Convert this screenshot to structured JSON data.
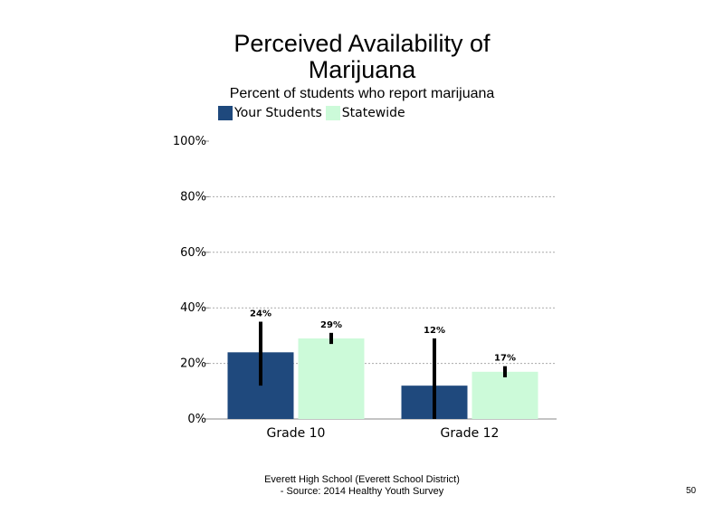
{
  "chart_data": {
    "type": "bar",
    "title_line1": "Perceived Availability of",
    "title_line2": "Marijuana",
    "subtitle": "Percent of students  who report marijuana",
    "categories": [
      "Grade 10",
      "Grade 12"
    ],
    "series": [
      {
        "name": "Your Students",
        "color": "#1f497d",
        "values": [
          24,
          12
        ],
        "labels": [
          "24%",
          "12%"
        ],
        "error_low": [
          12,
          0
        ],
        "error_high": [
          35,
          29
        ]
      },
      {
        "name": "Statewide",
        "color": "#ccfad9",
        "values": [
          29,
          17
        ],
        "labels": [
          "29%",
          "17%"
        ],
        "error_low": [
          27,
          15
        ],
        "error_high": [
          31,
          19
        ]
      }
    ],
    "yticks": [
      0,
      20,
      40,
      60,
      80,
      100
    ],
    "ytick_labels": [
      "0%",
      "20%",
      "40%",
      "60%",
      "80%",
      "100%"
    ],
    "ylim": [
      0,
      100
    ],
    "grid": true,
    "legend_position": "top"
  },
  "footer": {
    "line1": "Everett High  School (Everett School District)",
    "line2": "- Source: 2014 Healthy  Youth Survey"
  },
  "page_number": "50"
}
